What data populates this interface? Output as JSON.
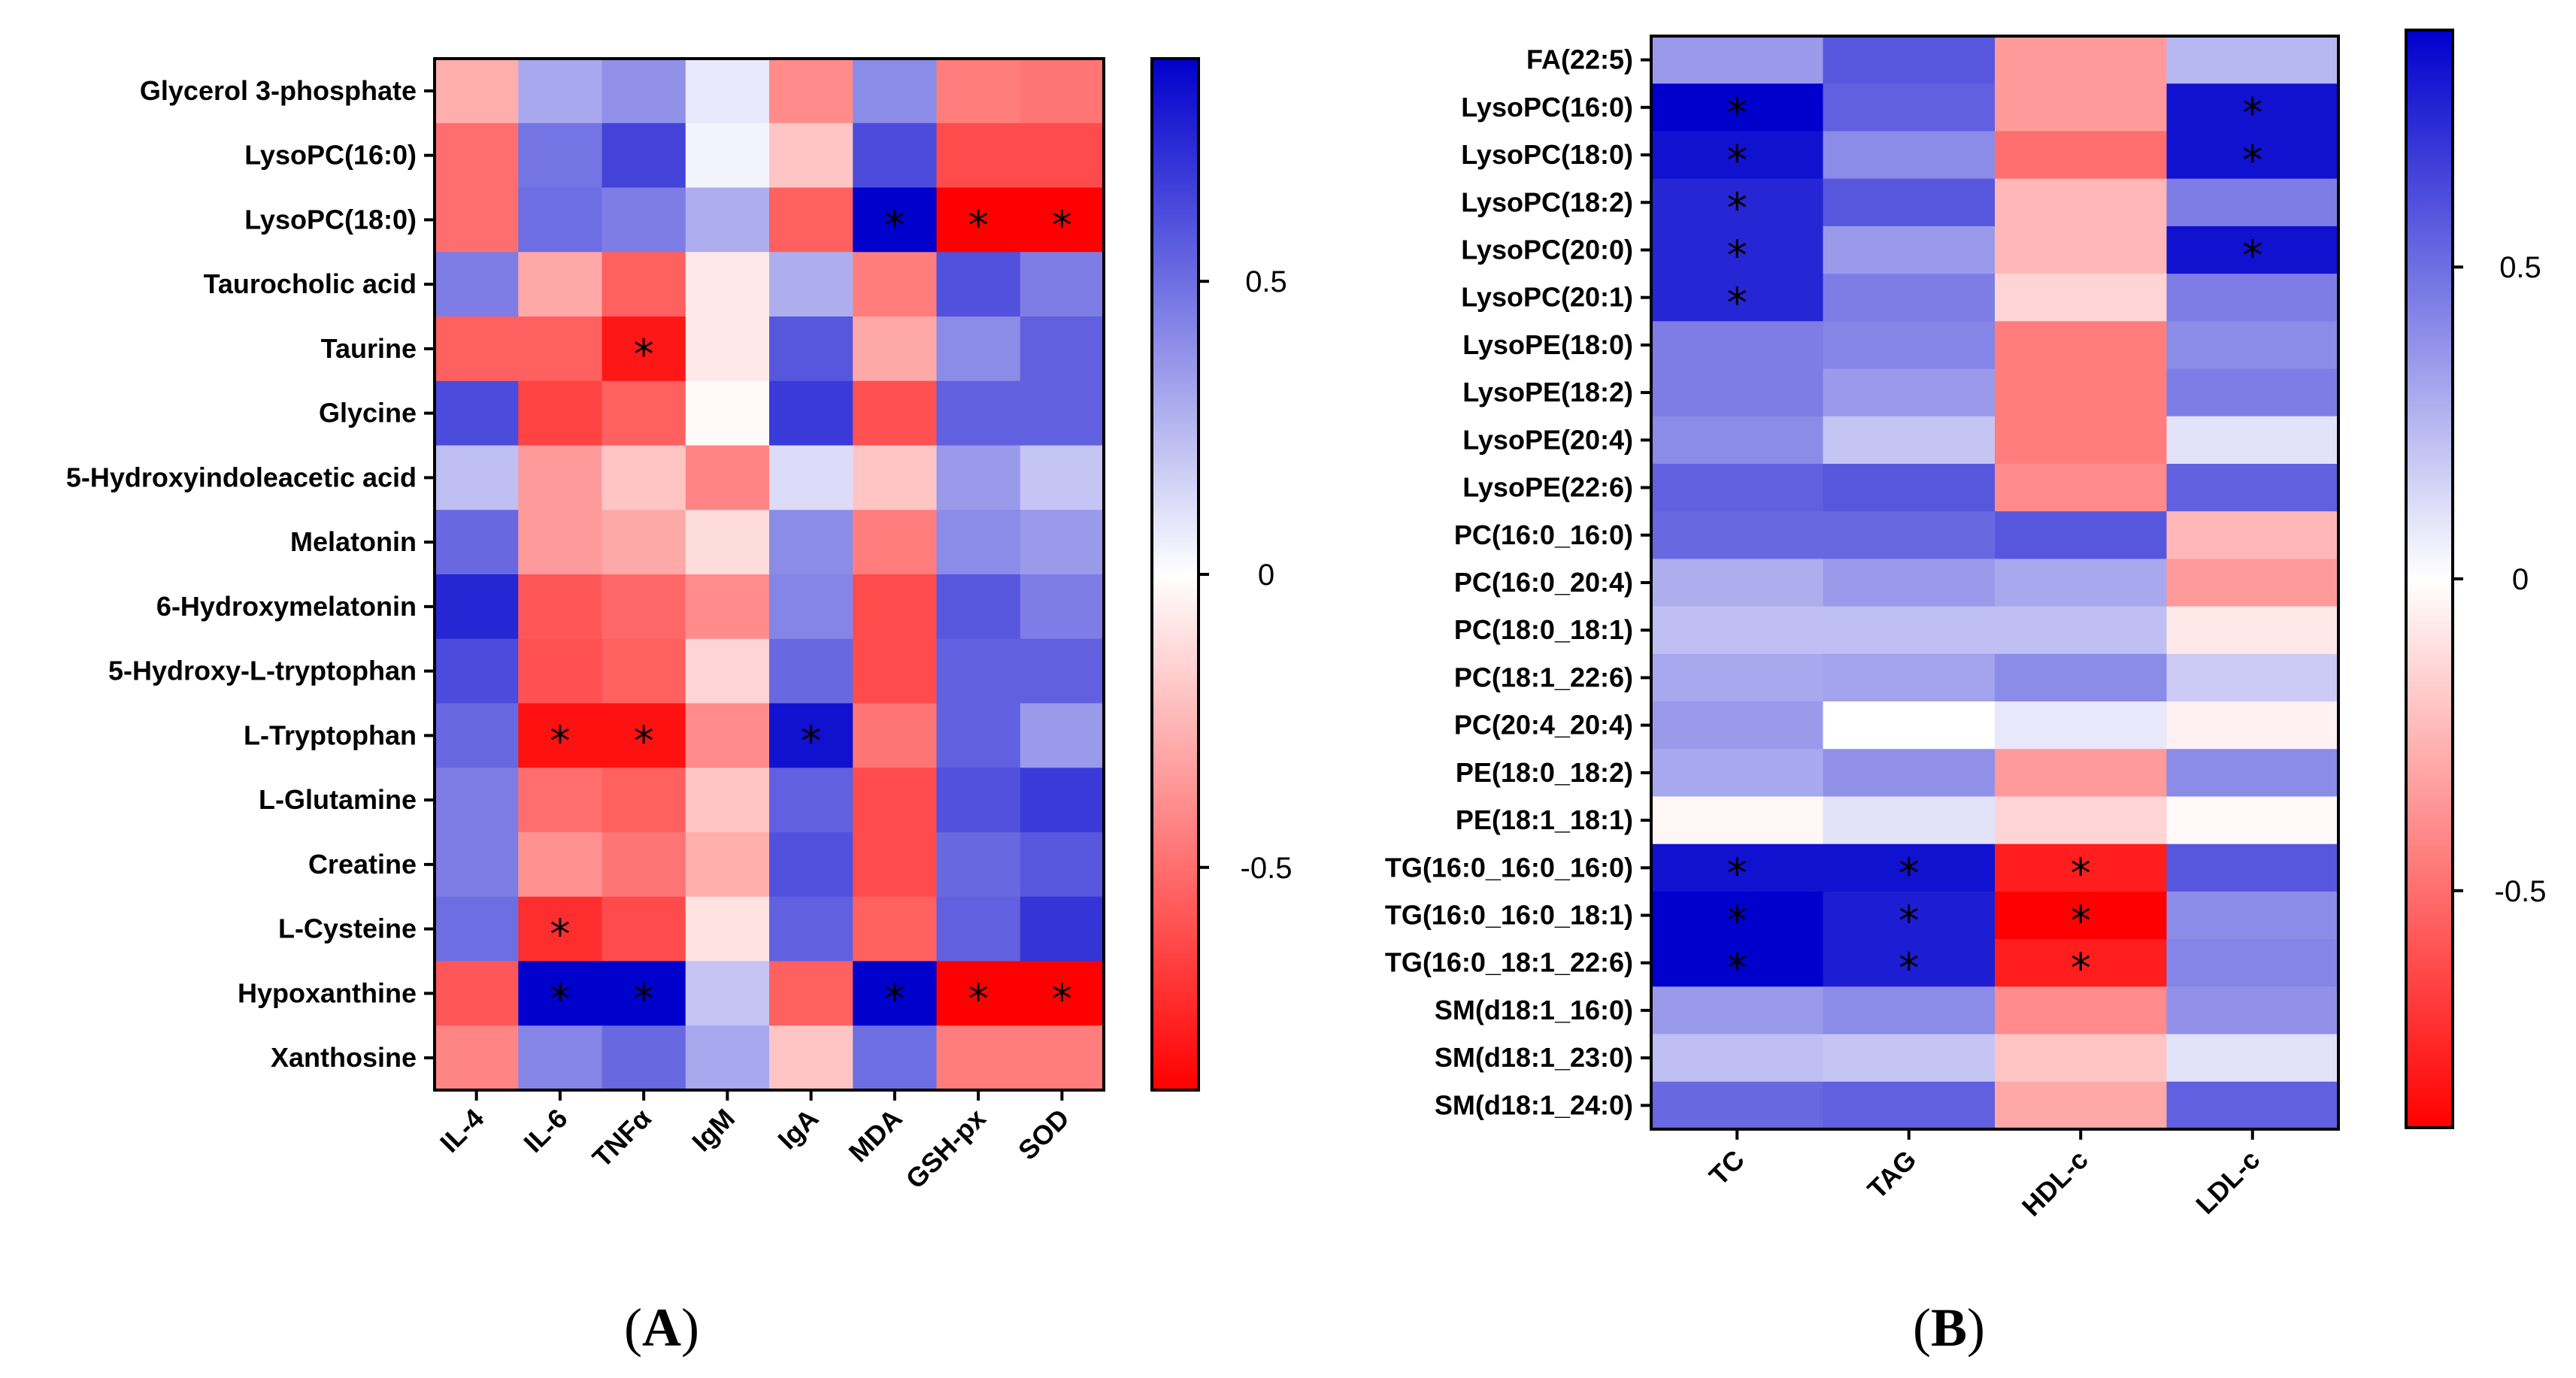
{
  "chart_data": [
    {
      "type": "heatmap",
      "panel": "A",
      "columns": [
        "IL-4",
        "IL-6",
        "TNFα",
        "IgM",
        "IgA",
        "MDA",
        "GSH-px",
        "SOD"
      ],
      "rows": [
        "Glycerol 3-phosphate",
        "LysoPC(16:0)",
        "LysoPC(18:0)",
        "Taurocholic acid",
        "Taurine",
        "Glycine",
        "5-Hydroxyindoleacetic acid",
        "Melatonin",
        "6-Hydroxymelatonin",
        "5-Hydroxy-L-tryptophan",
        "L-Tryptophan",
        "L-Glutamine",
        "Creatine",
        "L-Cysteine",
        "Hypoxanthine",
        "Xanthosine"
      ],
      "values": [
        [
          -0.28,
          0.3,
          0.38,
          0.08,
          -0.4,
          0.4,
          -0.45,
          -0.48
        ],
        [
          -0.5,
          0.48,
          0.65,
          0.04,
          -0.2,
          0.62,
          -0.62,
          -0.62
        ],
        [
          -0.5,
          0.5,
          0.45,
          0.28,
          -0.55,
          0.9,
          -0.9,
          -0.9
        ],
        [
          0.45,
          -0.3,
          -0.55,
          -0.08,
          0.28,
          -0.45,
          0.6,
          0.45
        ],
        [
          -0.55,
          -0.55,
          -0.8,
          -0.08,
          0.58,
          -0.3,
          0.4,
          0.55
        ],
        [
          0.62,
          -0.65,
          -0.55,
          -0.02,
          0.68,
          -0.6,
          0.55,
          0.55
        ],
        [
          0.22,
          -0.35,
          -0.2,
          -0.42,
          0.12,
          -0.2,
          0.35,
          0.2
        ],
        [
          0.52,
          -0.35,
          -0.3,
          -0.12,
          0.4,
          -0.45,
          0.4,
          0.35
        ],
        [
          0.75,
          -0.58,
          -0.52,
          -0.4,
          0.42,
          -0.62,
          0.58,
          0.45
        ],
        [
          0.62,
          -0.6,
          -0.55,
          -0.15,
          0.52,
          -0.62,
          0.55,
          0.55
        ],
        [
          0.52,
          -0.82,
          -0.82,
          -0.4,
          0.82,
          -0.48,
          0.55,
          0.35
        ],
        [
          0.45,
          -0.5,
          -0.55,
          -0.2,
          0.55,
          -0.62,
          0.6,
          0.68
        ],
        [
          0.45,
          -0.38,
          -0.48,
          -0.28,
          0.6,
          -0.62,
          0.52,
          0.58
        ],
        [
          0.5,
          -0.72,
          -0.62,
          -0.1,
          0.55,
          -0.55,
          0.55,
          0.7
        ],
        [
          -0.58,
          0.88,
          0.88,
          0.2,
          -0.55,
          0.88,
          -0.88,
          -0.88
        ],
        [
          -0.42,
          0.42,
          0.52,
          0.3,
          -0.2,
          0.5,
          -0.45,
          -0.45
        ]
      ],
      "significance": [
        [
          false,
          false,
          false,
          false,
          false,
          false,
          false,
          false
        ],
        [
          false,
          false,
          false,
          false,
          false,
          false,
          false,
          false
        ],
        [
          false,
          false,
          false,
          false,
          false,
          true,
          true,
          true
        ],
        [
          false,
          false,
          false,
          false,
          false,
          false,
          false,
          false
        ],
        [
          false,
          false,
          true,
          false,
          false,
          false,
          false,
          false
        ],
        [
          false,
          false,
          false,
          false,
          false,
          false,
          false,
          false
        ],
        [
          false,
          false,
          false,
          false,
          false,
          false,
          false,
          false
        ],
        [
          false,
          false,
          false,
          false,
          false,
          false,
          false,
          false
        ],
        [
          false,
          false,
          false,
          false,
          false,
          false,
          false,
          false
        ],
        [
          false,
          false,
          false,
          false,
          false,
          false,
          false,
          false
        ],
        [
          false,
          true,
          true,
          false,
          true,
          false,
          false,
          false
        ],
        [
          false,
          false,
          false,
          false,
          false,
          false,
          false,
          false
        ],
        [
          false,
          false,
          false,
          false,
          false,
          false,
          false,
          false
        ],
        [
          false,
          true,
          false,
          false,
          false,
          false,
          false,
          false
        ],
        [
          false,
          true,
          true,
          false,
          false,
          true,
          true,
          true
        ],
        [
          false,
          false,
          false,
          false,
          false,
          false,
          false,
          false
        ]
      ],
      "significance_marker": "*",
      "colorbar": {
        "min": -0.88,
        "max": 0.88,
        "ticks": [
          0.5,
          0,
          -0.5
        ],
        "tick_labels": [
          "0.5",
          "0",
          "-0.5"
        ]
      },
      "label": {
        "open": "(",
        "letter": "A",
        "close": ")"
      }
    },
    {
      "type": "heatmap",
      "panel": "B",
      "columns": [
        "TC",
        "TAG",
        "HDL-c",
        "LDL-c"
      ],
      "rows": [
        "FA(22:5)",
        "LysoPC(16:0)",
        "LysoPC(18:0)",
        "LysoPC(18:2)",
        "LysoPC(20:0)",
        "LysoPC(20:1)",
        "LysoPE(18:0)",
        "LysoPE(18:2)",
        "LysoPE(20:4)",
        "LysoPE(22:6)",
        "PC(16:0_16:0)",
        "PC(16:0_20:4)",
        "PC(18:0_18:1)",
        "PC(18:1_22:6)",
        "PC(20:4_20:4)",
        "PE(18:0_18:2)",
        "PE(18:1_18:1)",
        "TG(16:0_16:0_16:0)",
        "TG(16:0_16:0_18:1)",
        "TG(16:0_18:1_22:6)",
        "SM(d18:1_16:0)",
        "SM(d18:1_23:0)",
        "SM(d18:1_24:0)"
      ],
      "values": [
        [
          0.35,
          0.58,
          -0.35,
          0.25
        ],
        [
          0.88,
          0.55,
          -0.35,
          0.82
        ],
        [
          0.82,
          0.4,
          -0.5,
          0.82
        ],
        [
          0.75,
          0.58,
          -0.25,
          0.45
        ],
        [
          0.75,
          0.35,
          -0.25,
          0.82
        ],
        [
          0.75,
          0.45,
          -0.15,
          0.45
        ],
        [
          0.45,
          0.42,
          -0.45,
          0.4
        ],
        [
          0.45,
          0.35,
          -0.45,
          0.45
        ],
        [
          0.4,
          0.2,
          -0.45,
          0.1
        ],
        [
          0.55,
          0.58,
          -0.4,
          0.55
        ],
        [
          0.52,
          0.52,
          0.58,
          -0.25
        ],
        [
          0.28,
          0.35,
          0.3,
          -0.35
        ],
        [
          0.22,
          0.22,
          0.22,
          -0.08
        ],
        [
          0.3,
          0.32,
          0.4,
          0.18
        ],
        [
          0.35,
          0.0,
          0.08,
          -0.05
        ],
        [
          0.3,
          0.38,
          -0.35,
          0.4
        ],
        [
          -0.03,
          0.1,
          -0.15,
          -0.02
        ],
        [
          0.82,
          0.82,
          -0.78,
          0.58
        ],
        [
          0.88,
          0.78,
          -0.88,
          0.4
        ],
        [
          0.88,
          0.78,
          -0.78,
          0.42
        ],
        [
          0.35,
          0.4,
          -0.4,
          0.38
        ],
        [
          0.22,
          0.2,
          -0.2,
          0.1
        ],
        [
          0.52,
          0.55,
          -0.3,
          0.55
        ]
      ],
      "significance": [
        [
          false,
          false,
          false,
          false
        ],
        [
          true,
          false,
          false,
          true
        ],
        [
          true,
          false,
          false,
          true
        ],
        [
          true,
          false,
          false,
          false
        ],
        [
          true,
          false,
          false,
          true
        ],
        [
          true,
          false,
          false,
          false
        ],
        [
          false,
          false,
          false,
          false
        ],
        [
          false,
          false,
          false,
          false
        ],
        [
          false,
          false,
          false,
          false
        ],
        [
          false,
          false,
          false,
          false
        ],
        [
          false,
          false,
          false,
          false
        ],
        [
          false,
          false,
          false,
          false
        ],
        [
          false,
          false,
          false,
          false
        ],
        [
          false,
          false,
          false,
          false
        ],
        [
          false,
          false,
          false,
          false
        ],
        [
          false,
          false,
          false,
          false
        ],
        [
          false,
          false,
          false,
          false
        ],
        [
          true,
          true,
          true,
          false
        ],
        [
          true,
          true,
          true,
          false
        ],
        [
          true,
          true,
          true,
          false
        ],
        [
          false,
          false,
          false,
          false
        ],
        [
          false,
          false,
          false,
          false
        ],
        [
          false,
          false,
          false,
          false
        ]
      ],
      "significance_marker": "*",
      "colorbar": {
        "min": -0.88,
        "max": 0.88,
        "ticks": [
          0.5,
          0,
          -0.5
        ],
        "tick_labels": [
          "0.5",
          "0",
          "-0.5"
        ]
      },
      "label": {
        "open": "(",
        "letter": "B",
        "close": ")"
      }
    }
  ]
}
